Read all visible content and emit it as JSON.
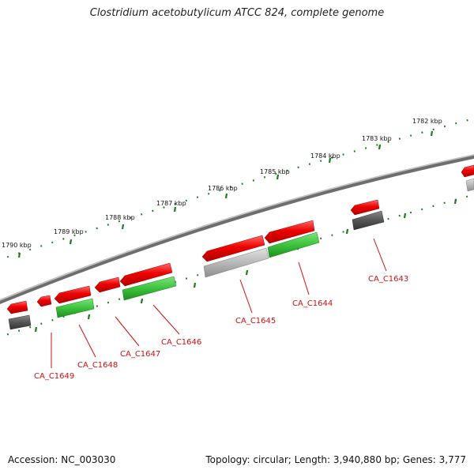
{
  "title": "Clostridium acetobutylicum ATCC 824, complete genome",
  "footer": {
    "accession": "Accession: NC_003030",
    "info": "Topology: circular; Length: 3,940,880 bp; Genes: 3,777"
  },
  "colors": {
    "plus_strand": "#e60000",
    "minus_strand_1": "#3cc23c",
    "minus_strand_2": "#b5b5b5",
    "dark_gene": "#5a5a5a",
    "backbone": "#7a7a7a",
    "ticks": "#1e7a1e",
    "gene_label": "#cc1111"
  },
  "scale_labels": [
    "1782 kbp",
    "1783 kbp",
    "1784 kbp",
    "1785 kbp",
    "1786 kbp",
    "1787 kbp",
    "1788 kbp",
    "1789 kbp",
    "1790 kbp"
  ],
  "gene_labels": [
    "CA_C1643",
    "CA_C1644",
    "CA_C1645",
    "CA_C1646",
    "CA_C1647",
    "CA_C1648",
    "CA_C1649"
  ]
}
